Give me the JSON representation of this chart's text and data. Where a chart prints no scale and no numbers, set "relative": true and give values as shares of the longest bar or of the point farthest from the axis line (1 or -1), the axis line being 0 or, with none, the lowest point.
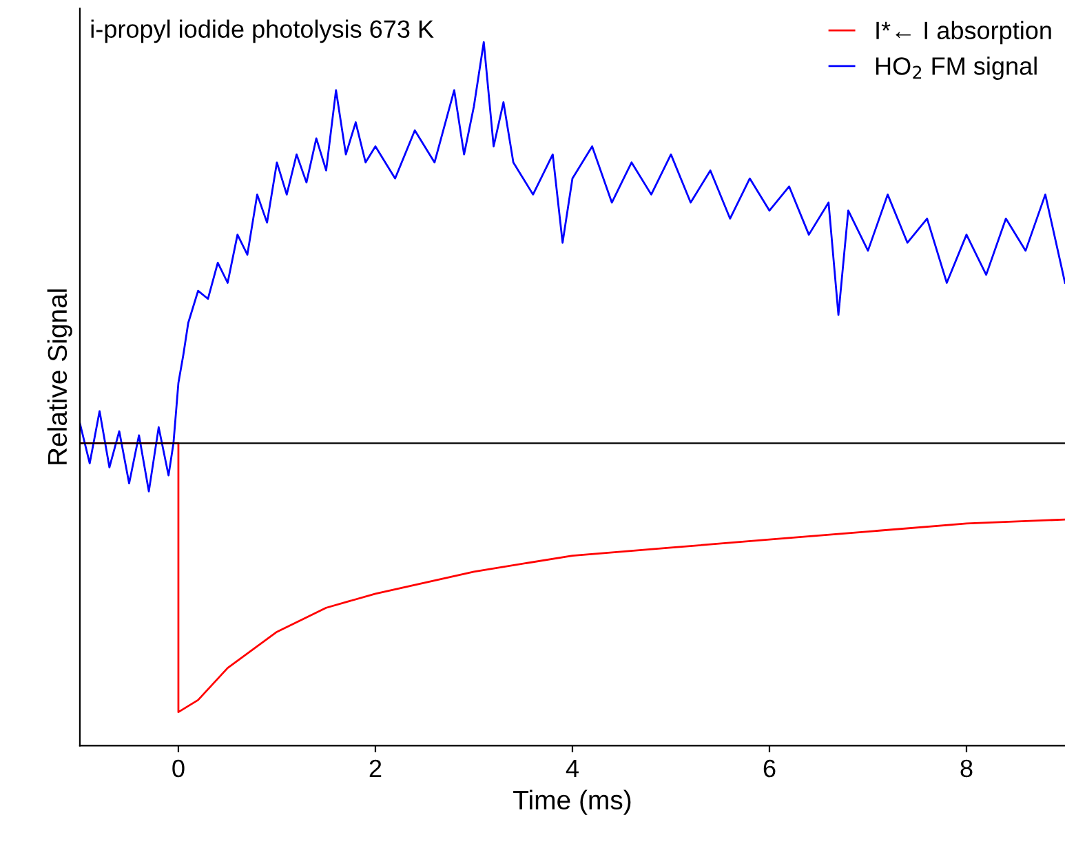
{
  "chart_data": {
    "type": "line",
    "relative": true,
    "xlabel": "Time (ms)",
    "ylabel": "Relative Signal",
    "xlim": [
      -1,
      9
    ],
    "xticks": [
      0,
      2,
      4,
      6,
      8
    ],
    "legend": "top right",
    "grid": false,
    "line_style": "solid",
    "marker": "none",
    "annotations": [
      "i-propyl iodide photolysis 673 K"
    ],
    "ref_lines": [
      {
        "axis": "y",
        "value": 0,
        "color": "#000000"
      }
    ],
    "series": [
      {
        "name": "I*← I absorption",
        "color": "#ff0000",
        "x": [
          -1,
          -0.5,
          0,
          0,
          0.2,
          0.5,
          1,
          1.5,
          2,
          3,
          4,
          5,
          6,
          7,
          8,
          9
        ],
        "values": [
          0,
          0,
          0,
          -0.67,
          -0.64,
          -0.56,
          -0.47,
          -0.41,
          -0.375,
          -0.32,
          -0.28,
          -0.26,
          -0.24,
          -0.22,
          -0.2,
          -0.19
        ]
      },
      {
        "name": "HO$_{2}$ FM signal",
        "color": "#0000ff",
        "x": [
          -1,
          -0.9,
          -0.8,
          -0.7,
          -0.6,
          -0.5,
          -0.4,
          -0.3,
          -0.2,
          -0.1,
          -0.05,
          0,
          0.05,
          0.1,
          0.2,
          0.3,
          0.4,
          0.5,
          0.6,
          0.7,
          0.8,
          0.9,
          1,
          1.1,
          1.2,
          1.3,
          1.4,
          1.5,
          1.6,
          1.7,
          1.8,
          1.9,
          2,
          2.2,
          2.4,
          2.6,
          2.8,
          2.9,
          3,
          3.1,
          3.2,
          3.3,
          3.4,
          3.6,
          3.8,
          3.9,
          4,
          4.2,
          4.4,
          4.6,
          4.8,
          5,
          5.2,
          5.4,
          5.6,
          5.8,
          6,
          6.2,
          6.4,
          6.6,
          6.7,
          6.8,
          7,
          7.2,
          7.4,
          7.6,
          7.8,
          8,
          8.2,
          8.4,
          8.6,
          8.8,
          9
        ],
        "values": [
          0.05,
          -0.05,
          0.08,
          -0.06,
          0.03,
          -0.1,
          0.02,
          -0.12,
          0.04,
          -0.08,
          0,
          0.15,
          0.22,
          0.3,
          0.38,
          0.36,
          0.45,
          0.4,
          0.52,
          0.47,
          0.62,
          0.55,
          0.7,
          0.62,
          0.72,
          0.65,
          0.76,
          0.68,
          0.88,
          0.72,
          0.8,
          0.7,
          0.74,
          0.66,
          0.78,
          0.7,
          0.88,
          0.72,
          0.84,
          1,
          0.74,
          0.85,
          0.7,
          0.62,
          0.72,
          0.5,
          0.66,
          0.74,
          0.6,
          0.7,
          0.62,
          0.72,
          0.6,
          0.68,
          0.56,
          0.66,
          0.58,
          0.64,
          0.52,
          0.6,
          0.32,
          0.58,
          0.48,
          0.62,
          0.5,
          0.56,
          0.4,
          0.52,
          0.42,
          0.56,
          0.48,
          0.62,
          0.4
        ]
      }
    ]
  }
}
